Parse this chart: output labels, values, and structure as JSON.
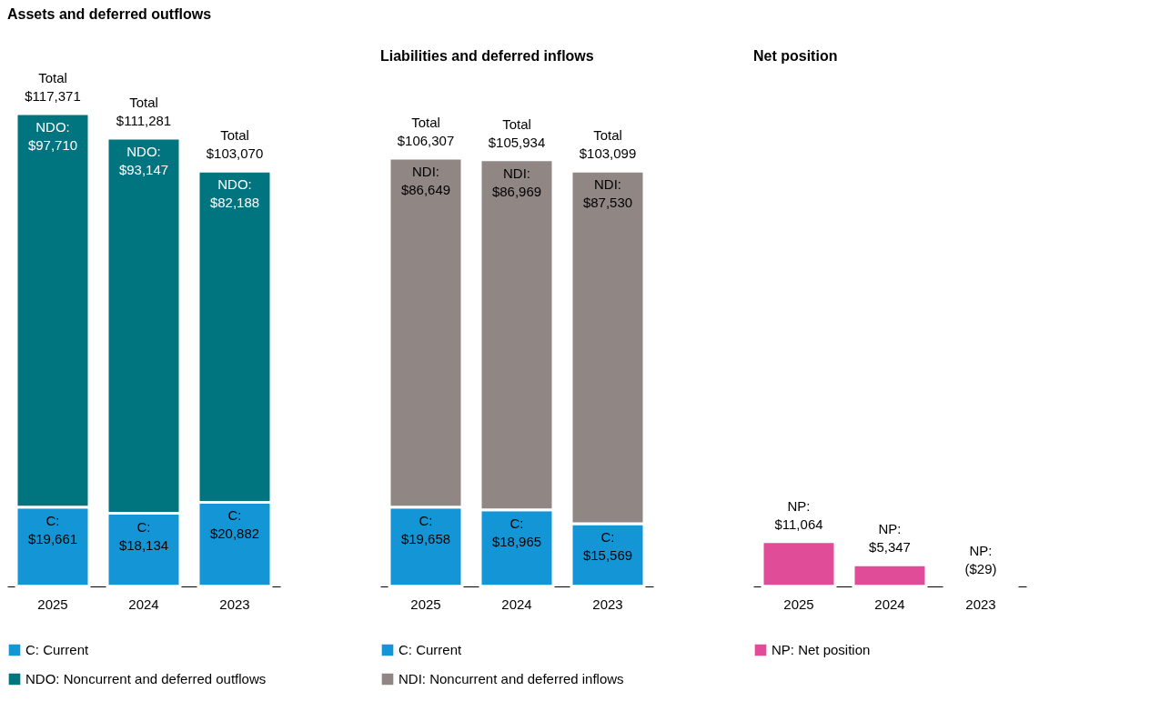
{
  "chart_data": [
    {
      "type": "bar",
      "title": "Assets and deferred outflows",
      "categories": [
        "2025",
        "2024",
        "2023"
      ],
      "stacked": true,
      "legend": "bottom",
      "series": [
        {
          "name": "C: Current",
          "color": "#1496d6",
          "values": [
            19661,
            18134,
            20882
          ],
          "value_labels": [
            "C: $19,661",
            "C: $18,134",
            "C: $20,882"
          ]
        },
        {
          "name": "NDO: Noncurrent and deferred outflows",
          "color": "#00747f",
          "values": [
            97710,
            93147,
            82188
          ],
          "value_labels": [
            "NDO: $97,710",
            "NDO: $93,147",
            "NDO: $82,188"
          ]
        }
      ],
      "totals": [
        "Total $117,371",
        "Total $111,281",
        "Total $103,070"
      ]
    },
    {
      "type": "bar",
      "title": "Liabilities and deferred inflows",
      "categories": [
        "2025",
        "2024",
        "2023"
      ],
      "stacked": true,
      "legend": "bottom",
      "series": [
        {
          "name": "C: Current",
          "color": "#1496d6",
          "values": [
            19658,
            18965,
            15569
          ],
          "value_labels": [
            "C: $19,658",
            "C: $18,965",
            "C: $15,569"
          ]
        },
        {
          "name": "NDI: Noncurrent and deferred inflows",
          "color": "#908784",
          "values": [
            86649,
            86969,
            87530
          ],
          "value_labels": [
            "NDI: $86,649",
            "NDI: $86,969",
            "NDI: $87,530"
          ]
        }
      ],
      "totals": [
        "Total $106,307",
        "Total $105,934",
        "Total $103,099"
      ]
    },
    {
      "type": "bar",
      "title": "Net position",
      "categories": [
        "2025",
        "2024",
        "2023"
      ],
      "legend": "bottom",
      "series": [
        {
          "name": "NP: Net position",
          "color": "#e04c98",
          "values": [
            11064,
            5347,
            -29
          ],
          "value_labels": [
            "NP: $11,064",
            "NP: $5,347",
            "NP: ($29)"
          ]
        }
      ]
    }
  ]
}
